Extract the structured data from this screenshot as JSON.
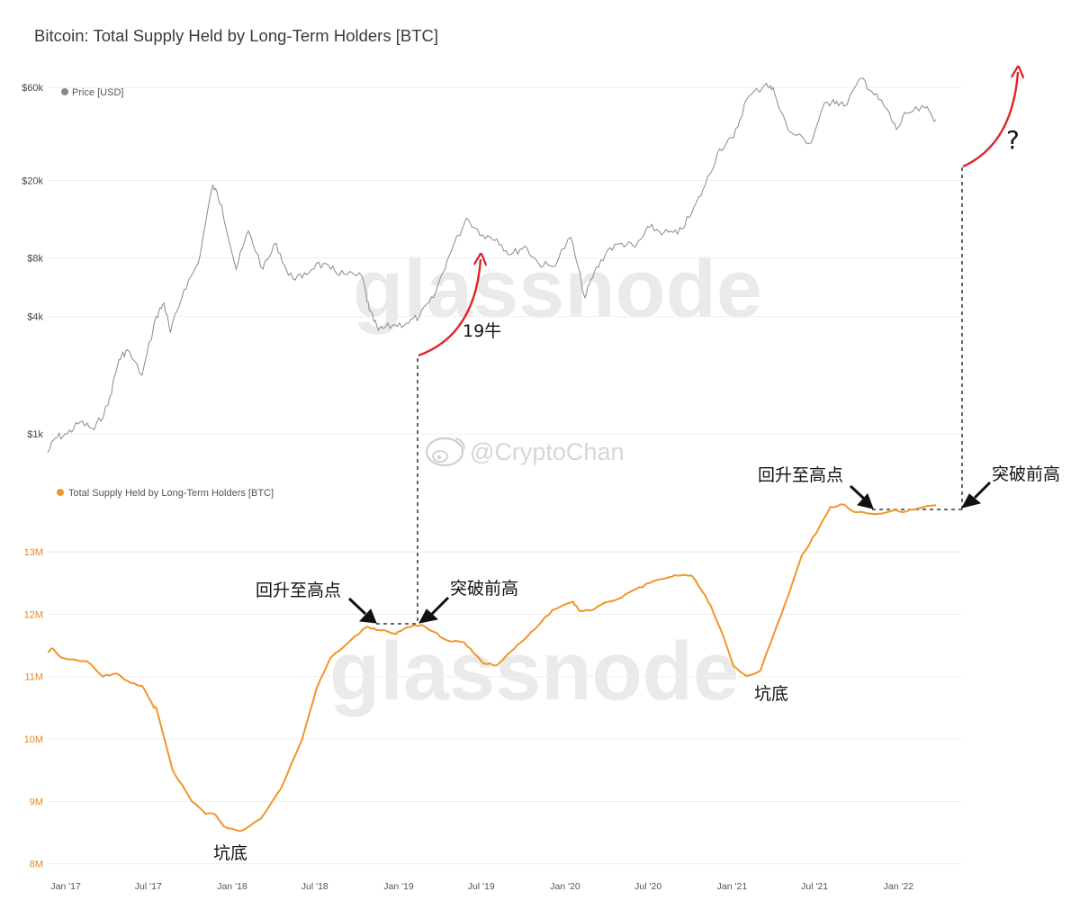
{
  "chart_data": {
    "title": "Bitcoin: Total Supply Held by Long-Term Holders [BTC]",
    "type": "line",
    "x_tick_labels": [
      "Jan '17",
      "Jul '17",
      "Jan '18",
      "Jul '18",
      "Jan '19",
      "Jul '19",
      "Jan '20",
      "Jul '20",
      "Jan '21",
      "Jul '21",
      "Jan '22"
    ],
    "x_range": [
      "2016-12-20",
      "2022-06-15"
    ],
    "panels": [
      {
        "name": "price",
        "legend": "Price [USD]",
        "scale": "log",
        "y_tick_labels": [
          "$1k",
          "$4k",
          "$8k",
          "$20k",
          "$60k"
        ],
        "y_tick_values": [
          1000,
          4000,
          8000,
          20000,
          60000
        ],
        "ylim": [
          600,
          80000
        ],
        "series": [
          {
            "name": "Price [USD]",
            "color": "#888888",
            "x": [
              "2016-12-20",
              "2017-01-05",
              "2017-02-01",
              "2017-03-01",
              "2017-04-01",
              "2017-05-01",
              "2017-05-25",
              "2017-06-12",
              "2017-07-15",
              "2017-08-15",
              "2017-09-01",
              "2017-09-15",
              "2017-10-15",
              "2017-11-15",
              "2017-12-17",
              "2018-01-05",
              "2018-02-06",
              "2018-03-05",
              "2018-04-06",
              "2018-05-05",
              "2018-06-01",
              "2018-07-01",
              "2018-08-01",
              "2018-09-01",
              "2018-10-01",
              "2018-11-10",
              "2018-11-25",
              "2018-12-15",
              "2019-01-15",
              "2019-02-15",
              "2019-03-15",
              "2019-04-15",
              "2019-05-15",
              "2019-06-26",
              "2019-08-01",
              "2019-09-01",
              "2019-10-01",
              "2019-11-01",
              "2019-12-01",
              "2020-01-01",
              "2020-02-10",
              "2020-03-12",
              "2020-04-01",
              "2020-05-01",
              "2020-06-01",
              "2020-07-01",
              "2020-08-01",
              "2020-09-01",
              "2020-10-01",
              "2020-11-01",
              "2020-12-01",
              "2021-01-01",
              "2021-02-01",
              "2021-03-01",
              "2021-04-14",
              "2021-05-01",
              "2021-06-01",
              "2021-07-20",
              "2021-08-15",
              "2021-09-07",
              "2021-10-01",
              "2021-11-10",
              "2021-12-01",
              "2022-01-01",
              "2022-01-24",
              "2022-02-15",
              "2022-03-28",
              "2022-04-21"
            ],
            "values": [
              800,
              950,
              1000,
              1150,
              1050,
              1400,
              2400,
              2700,
              2000,
              4000,
              4700,
              3300,
              5500,
              7500,
              19000,
              15000,
              7000,
              11000,
              7000,
              9500,
              6500,
              6300,
              7500,
              7000,
              6600,
              6400,
              4300,
              3400,
              3600,
              3700,
              4000,
              5000,
              7800,
              12800,
              10500,
              10000,
              8300,
              9200,
              7500,
              7200,
              10200,
              5000,
              6700,
              8800,
              9500,
              9100,
              11500,
              10800,
              10600,
              13500,
              19000,
              29000,
              33000,
              52000,
              63000,
              57000,
              36000,
              31000,
              47000,
              52000,
              48000,
              67000,
              57000,
              47000,
              36500,
              44000,
              47000,
              41000
            ]
          }
        ]
      },
      {
        "name": "lth",
        "legend": "Total Supply Held by Long-Term Holders [BTC]",
        "scale": "linear",
        "y_tick_labels": [
          "8M",
          "9M",
          "10M",
          "11M",
          "12M",
          "13M"
        ],
        "y_tick_values": [
          8000000,
          9000000,
          10000000,
          11000000,
          12000000,
          13000000
        ],
        "ylim": [
          7850000,
          14200000
        ],
        "series": [
          {
            "name": "Total Supply Held by Long-Term Holders [BTC]",
            "color": "#f0962b",
            "x": [
              "2016-12-20",
              "2017-01-01",
              "2017-01-20",
              "2017-03-15",
              "2017-04-20",
              "2017-05-20",
              "2017-06-20",
              "2017-07-15",
              "2017-08-10",
              "2017-08-15",
              "2017-09-20",
              "2017-11-01",
              "2017-12-01",
              "2017-12-20",
              "2018-01-10",
              "2018-02-15",
              "2018-04-01",
              "2018-05-15",
              "2018-07-01",
              "2018-08-01",
              "2018-09-01",
              "2018-10-15",
              "2018-11-20",
              "2018-12-10",
              "2019-01-05",
              "2019-01-22",
              "2019-02-15",
              "2019-03-20",
              "2019-04-15",
              "2019-05-15",
              "2019-06-20",
              "2019-07-05",
              "2019-08-01",
              "2019-09-01",
              "2019-10-01",
              "2019-11-01",
              "2019-12-01",
              "2020-01-01",
              "2020-02-15",
              "2020-03-01",
              "2020-04-01",
              "2020-05-01",
              "2020-06-01",
              "2020-07-01",
              "2020-08-01",
              "2020-09-15",
              "2020-10-01",
              "2020-11-01",
              "2020-12-01",
              "2020-12-15",
              "2021-01-01",
              "2021-02-01",
              "2021-03-01",
              "2021-04-01",
              "2021-05-01",
              "2021-06-01",
              "2021-07-01",
              "2021-08-01",
              "2021-09-01",
              "2021-10-01",
              "2021-10-20",
              "2021-11-15",
              "2021-12-15",
              "2022-01-15",
              "2022-02-15",
              "2022-03-15",
              "2022-04-21"
            ],
            "values": [
              11400000,
              11450000,
              11300000,
              11250000,
              11000000,
              11050000,
              10900000,
              10850000,
              10500000,
              10500000,
              9500000,
              9000000,
              8800000,
              8800000,
              8600000,
              8520000,
              8720000,
              9200000,
              10000000,
              10800000,
              11300000,
              11580000,
              11800000,
              11750000,
              11720000,
              11680000,
              11790000,
              11830000,
              11720000,
              11580000,
              11550000,
              11450000,
              11220000,
              11180000,
              11400000,
              11600000,
              11820000,
              12070000,
              12200000,
              12050000,
              12080000,
              12200000,
              12270000,
              12400000,
              12500000,
              12600000,
              12620000,
              12620000,
              12300000,
              12100000,
              11800000,
              11170000,
              11010000,
              11100000,
              11700000,
              12300000,
              12950000,
              13300000,
              13720000,
              13760000,
              13650000,
              13630000,
              13610000,
              13660000,
              13650000,
              13700000,
              13750000
            ]
          }
        ]
      }
    ],
    "annotations": {
      "bull_19": "19牛",
      "question": "?",
      "return_to_high_1": "回升至高点",
      "break_high_1": "突破前高",
      "bottom_1": "坑底",
      "return_to_high_2": "回升至高点",
      "break_high_2": "突破前高",
      "bottom_2": "坑底"
    },
    "watermark": "glassnode",
    "credit": "@CryptoChan",
    "grid": true
  }
}
